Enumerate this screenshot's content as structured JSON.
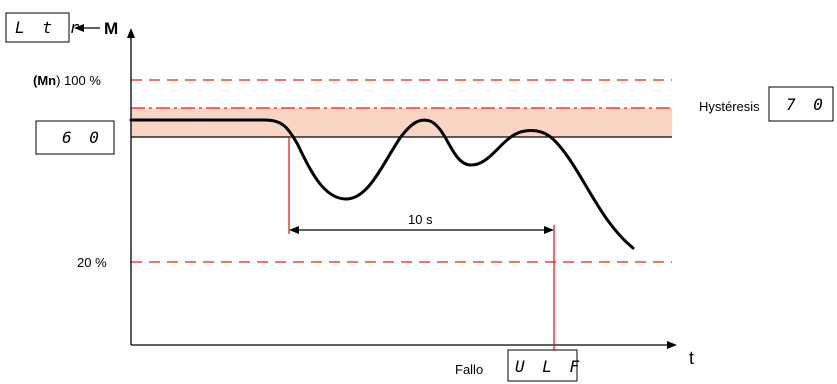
{
  "diagram": {
    "axis_y_label": "M",
    "axis_x_label": "t",
    "param_code_display": "L t r",
    "setpoint_display": "6 0",
    "hysteresis_label": "Hystéresis",
    "hysteresis_display": "7 0",
    "max_level_prefix": "(Mn",
    "max_level_suffix": ") 100 %",
    "min_level_label": "20 %",
    "delay_label": "10 s",
    "fault_label": "Fallo",
    "fault_code_display": "U L F",
    "colors": {
      "threshold": "#e0201b",
      "hysteresis_band": "#fbd5c4",
      "curve": "#000000"
    }
  }
}
